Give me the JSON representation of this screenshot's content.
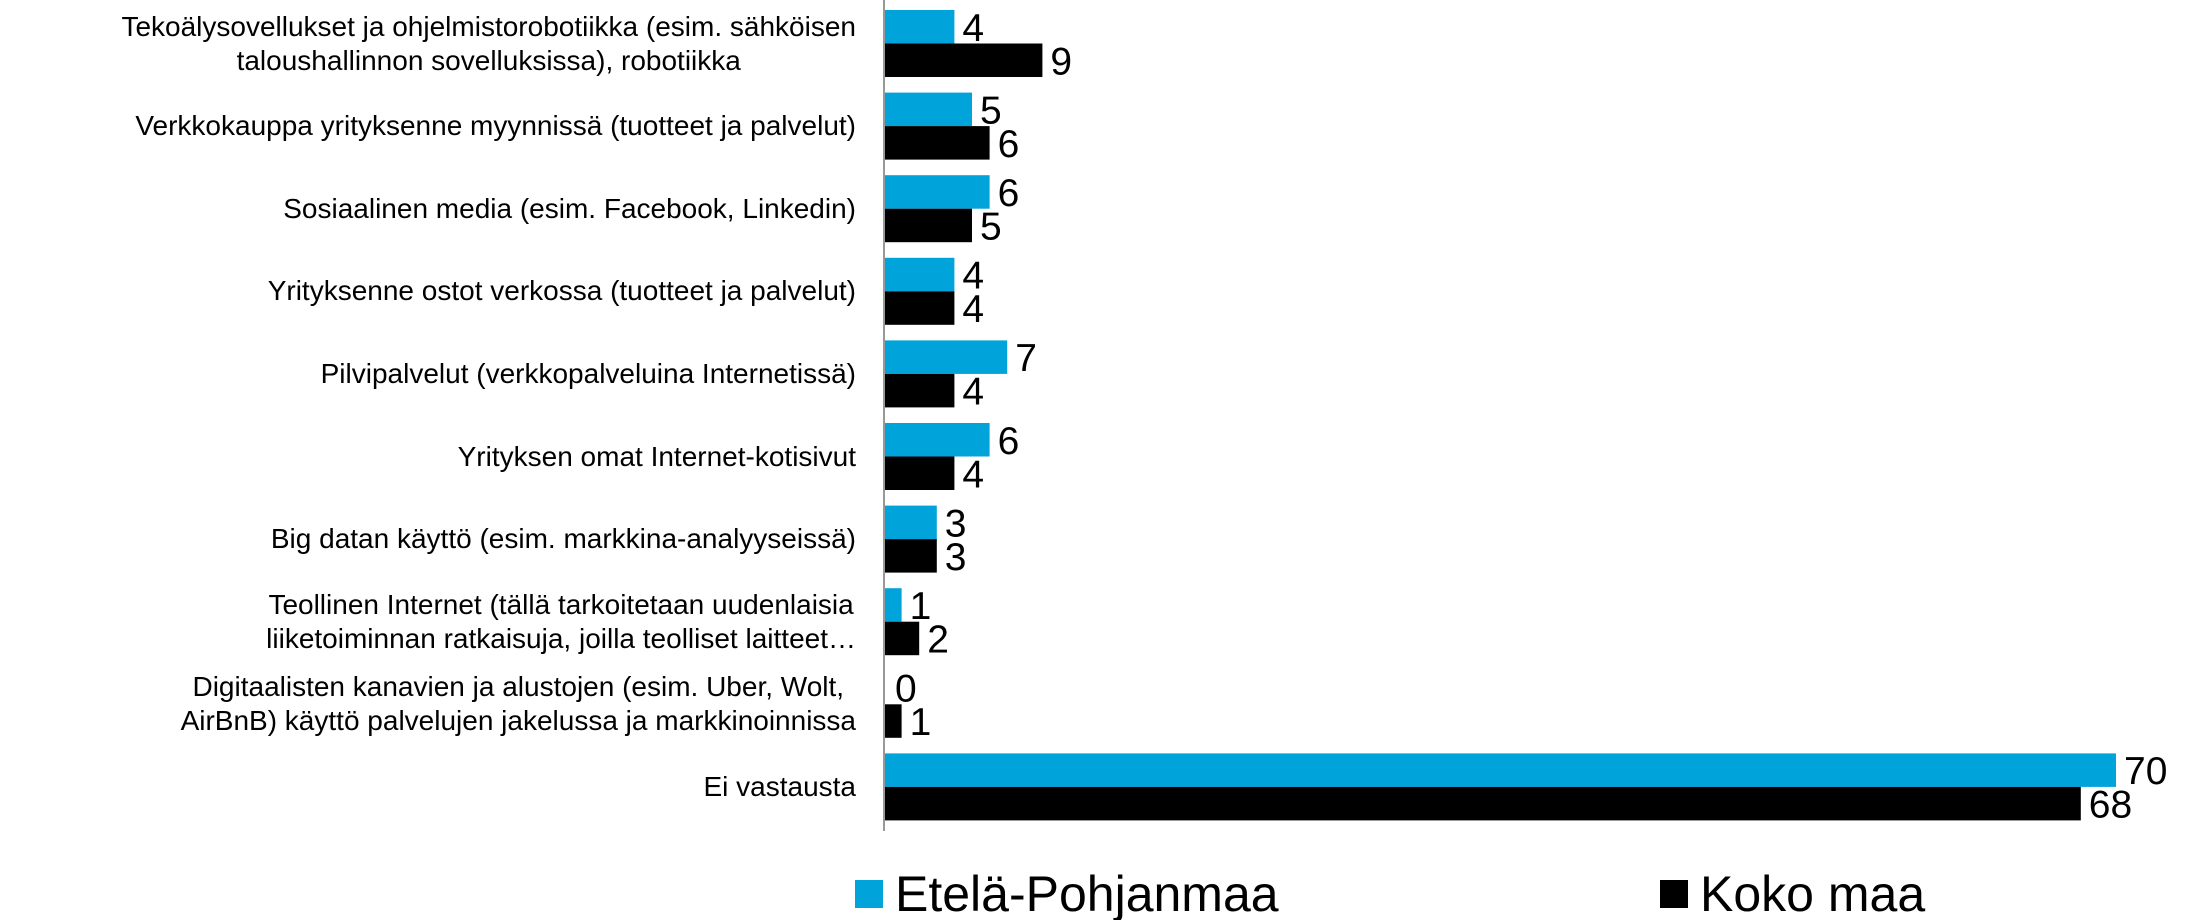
{
  "chart_data": {
    "type": "bar",
    "orientation": "horizontal",
    "categories": [
      "Tekoälysovellukset ja ohjelmistorobotiikka (esim. sähköisen\ntaloushallinnon sovelluksissa), robotiikka",
      "Verkkokauppa yrityksenne myynnissä (tuotteet ja palvelut)",
      "Sosiaalinen media (esim. Facebook, Linkedin)",
      "Yrityksenne ostot verkossa (tuotteet ja palvelut)",
      "Pilvipalvelut  (verkkopalveluina Internetissä)",
      "Yrityksen omat Internet-kotisivut",
      "Big datan käyttö (esim. markkina-analyyseissä)",
      "Teollinen Internet (tällä tarkoitetaan uudenlaisia\nliiketoiminnan ratkaisuja, joilla teolliset laitteet…",
      "Digitaalisten kanavien ja alustojen (esim. Uber, Wolt,\nAirBnB) käyttö palvelujen jakelussa ja markkinoinnissa",
      "Ei vastausta"
    ],
    "series": [
      {
        "name": "Etelä-Pohjanmaa",
        "color": "#00a3da",
        "values": [
          4,
          5,
          6,
          4,
          7,
          6,
          3,
          1,
          0,
          70
        ]
      },
      {
        "name": "Koko maa",
        "color": "#000000",
        "values": [
          9,
          6,
          5,
          4,
          4,
          4,
          3,
          2,
          1,
          68
        ]
      }
    ],
    "legend": "bottom"
  }
}
